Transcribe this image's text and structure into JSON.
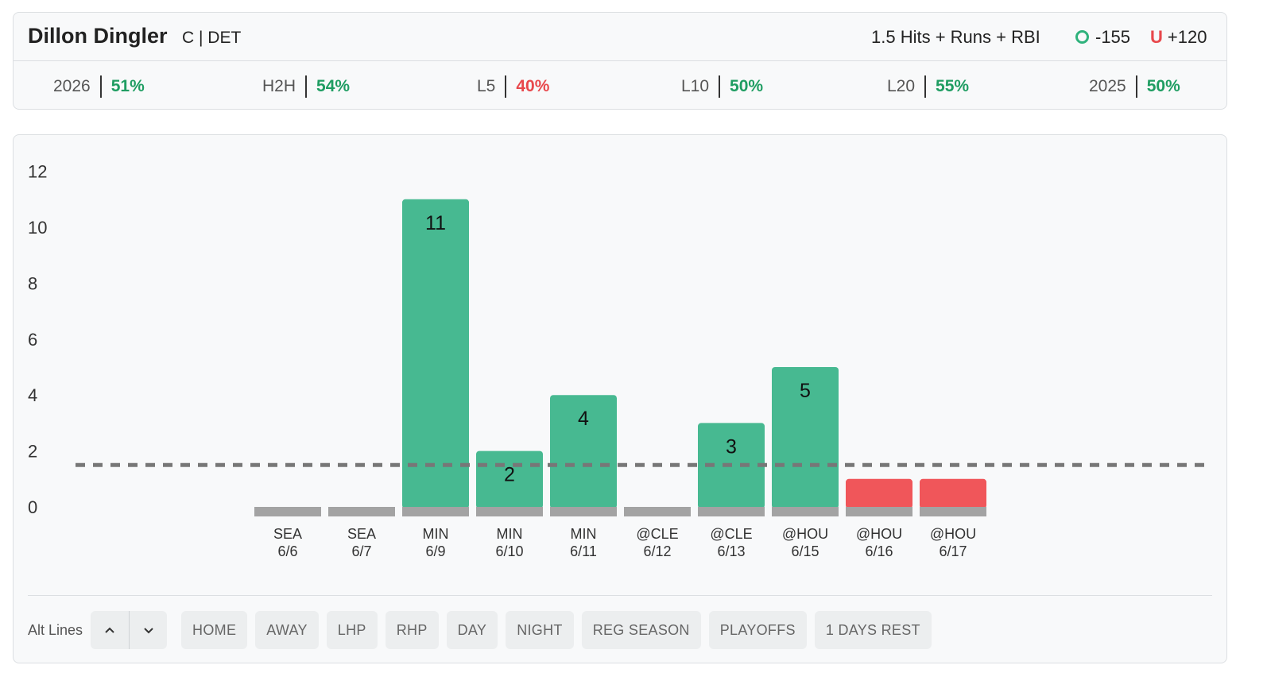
{
  "header": {
    "player_name": "Dillon Dingler",
    "position_team": "C | DET",
    "prop": "1.5 Hits + Runs + RBI",
    "over": {
      "tag": "O",
      "odds": "-155"
    },
    "under": {
      "tag": "U",
      "odds": "+120"
    }
  },
  "stats": [
    {
      "label": "2026",
      "value": "51%",
      "status": "green"
    },
    {
      "label": "H2H",
      "value": "54%",
      "status": "green"
    },
    {
      "label": "L5",
      "value": "40%",
      "status": "red"
    },
    {
      "label": "L10",
      "value": "50%",
      "status": "green"
    },
    {
      "label": "L20",
      "value": "55%",
      "status": "green"
    },
    {
      "label": "2025",
      "value": "50%",
      "status": "green"
    }
  ],
  "chart_data": {
    "type": "bar",
    "categories": [
      [
        "SEA",
        "6/6"
      ],
      [
        "SEA",
        "6/7"
      ],
      [
        "MIN",
        "6/9"
      ],
      [
        "MIN",
        "6/10"
      ],
      [
        "MIN",
        "6/11"
      ],
      [
        "@CLE",
        "6/12"
      ],
      [
        "@CLE",
        "6/13"
      ],
      [
        "@HOU",
        "6/15"
      ],
      [
        "@HOU",
        "6/16"
      ],
      [
        "@HOU",
        "6/17"
      ]
    ],
    "values": [
      0,
      0,
      11,
      2,
      4,
      0,
      3,
      5,
      1,
      1
    ],
    "data_labels": [
      "",
      "",
      "11",
      "2",
      "4",
      "",
      "3",
      "5",
      "",
      ""
    ],
    "line": 1.5,
    "yticks": [
      0,
      2,
      4,
      6,
      8,
      10,
      12
    ],
    "ylim": [
      0,
      12
    ],
    "colors": {
      "over": "#47b991",
      "under": "#f0565a",
      "base": "#a3a3a3",
      "line": "#777777"
    }
  },
  "toolbar": {
    "alt_lines_label": "Alt Lines",
    "up_icon": "chevron-up-icon",
    "down_icon": "chevron-down-icon",
    "filters": [
      "HOME",
      "AWAY",
      "LHP",
      "RHP",
      "DAY",
      "NIGHT",
      "REG SEASON",
      "PLAYOFFS",
      "1 DAYS REST"
    ]
  }
}
